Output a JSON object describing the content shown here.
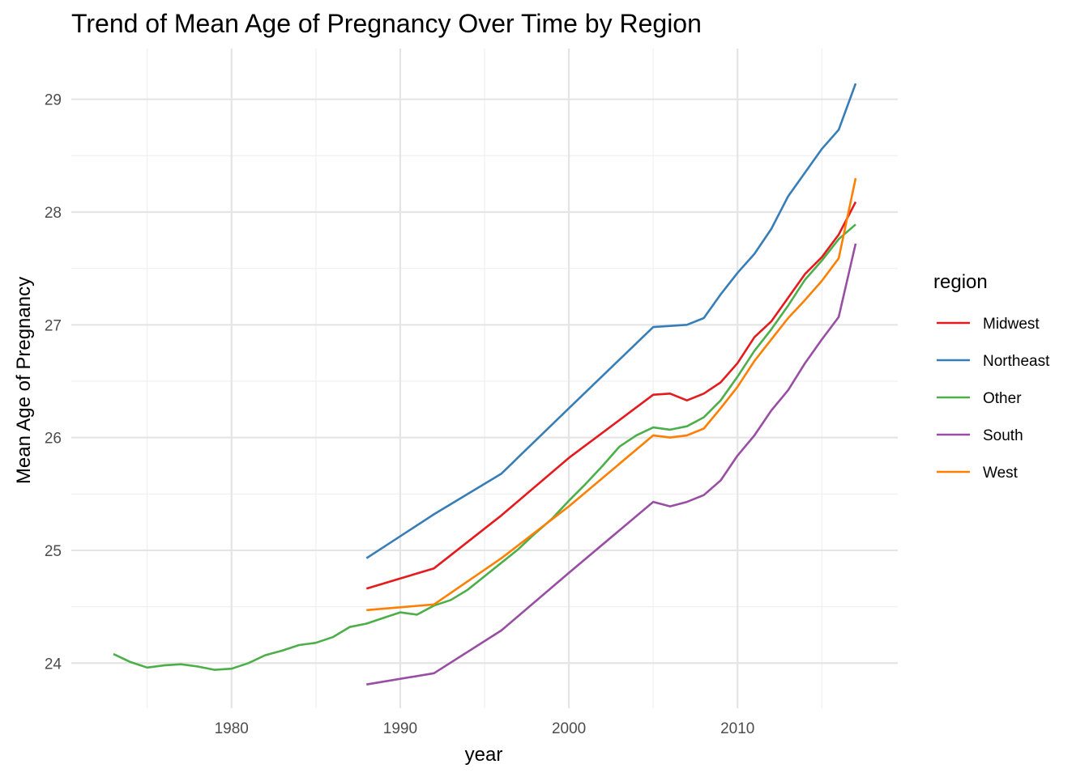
{
  "chart_data": {
    "type": "line",
    "title": "Trend of Mean Age of Pregnancy Over Time by Region",
    "xlabel": "year",
    "ylabel": "Mean Age of Pregnancy",
    "xlim": [
      1970.5,
      2019.5
    ],
    "ylim": [
      23.6,
      29.45
    ],
    "x_ticks": [
      1980,
      1990,
      2000,
      2010
    ],
    "y_ticks": [
      24,
      25,
      26,
      27,
      28,
      29
    ],
    "grid": true,
    "legend": {
      "title": "region",
      "placement": "right"
    },
    "series": [
      {
        "name": "Midwest",
        "color": "#E41A1C",
        "x": [
          1988,
          1990,
          1992,
          1996,
          2000,
          2005,
          2006,
          2007,
          2008,
          2009,
          2010,
          2011,
          2012,
          2013,
          2014,
          2015,
          2016,
          2017
        ],
        "values": [
          24.66,
          24.75,
          24.84,
          25.31,
          25.82,
          26.38,
          26.39,
          26.33,
          26.39,
          26.49,
          26.66,
          26.89,
          27.03,
          27.24,
          27.45,
          27.6,
          27.8,
          28.09
        ]
      },
      {
        "name": "Northeast",
        "color": "#377EB8",
        "x": [
          1988,
          1992,
          1996,
          2000,
          2005,
          2006,
          2007,
          2008,
          2009,
          2010,
          2011,
          2012,
          2013,
          2014,
          2015,
          2016,
          2017
        ],
        "values": [
          24.93,
          25.32,
          25.68,
          26.26,
          26.98,
          26.99,
          27.0,
          27.06,
          27.27,
          27.46,
          27.63,
          27.85,
          28.14,
          28.35,
          28.56,
          28.73,
          29.14
        ]
      },
      {
        "name": "Other",
        "color": "#4DAF4A",
        "x": [
          1973,
          1974,
          1975,
          1976,
          1977,
          1978,
          1979,
          1980,
          1981,
          1982,
          1983,
          1984,
          1985,
          1986,
          1987,
          1988,
          1989,
          1990,
          1991,
          1992,
          1993,
          1994,
          1995,
          1996,
          1997,
          1998,
          1999,
          2000,
          2001,
          2002,
          2003,
          2004,
          2005,
          2006,
          2007,
          2008,
          2009,
          2010,
          2011,
          2012,
          2013,
          2014,
          2015,
          2016,
          2017
        ],
        "values": [
          24.08,
          24.01,
          23.96,
          23.98,
          23.99,
          23.97,
          23.94,
          23.95,
          24.0,
          24.07,
          24.11,
          24.16,
          24.18,
          24.23,
          24.32,
          24.35,
          24.4,
          24.45,
          24.43,
          24.51,
          24.56,
          24.65,
          24.77,
          24.89,
          25.01,
          25.15,
          25.28,
          25.44,
          25.59,
          25.75,
          25.92,
          26.02,
          26.09,
          26.07,
          26.1,
          26.18,
          26.33,
          26.54,
          26.77,
          26.96,
          27.17,
          27.4,
          27.57,
          27.76,
          27.89
        ]
      },
      {
        "name": "South",
        "color": "#984EA3",
        "x": [
          1988,
          1992,
          1996,
          2000,
          2005,
          2006,
          2007,
          2008,
          2009,
          2010,
          2011,
          2012,
          2013,
          2014,
          2015,
          2016,
          2017
        ],
        "values": [
          23.81,
          23.91,
          24.29,
          24.8,
          25.43,
          25.39,
          25.43,
          25.49,
          25.62,
          25.84,
          26.02,
          26.24,
          26.42,
          26.66,
          26.87,
          27.07,
          27.72
        ]
      },
      {
        "name": "West",
        "color": "#FF7F00",
        "x": [
          1988,
          1992,
          1996,
          2000,
          2005,
          2006,
          2007,
          2008,
          2009,
          2010,
          2011,
          2012,
          2013,
          2014,
          2015,
          2016,
          2017
        ],
        "values": [
          24.47,
          24.52,
          24.93,
          25.39,
          26.02,
          26.0,
          26.02,
          26.08,
          26.26,
          26.45,
          26.68,
          26.87,
          27.06,
          27.22,
          27.39,
          27.59,
          28.3
        ]
      }
    ]
  }
}
